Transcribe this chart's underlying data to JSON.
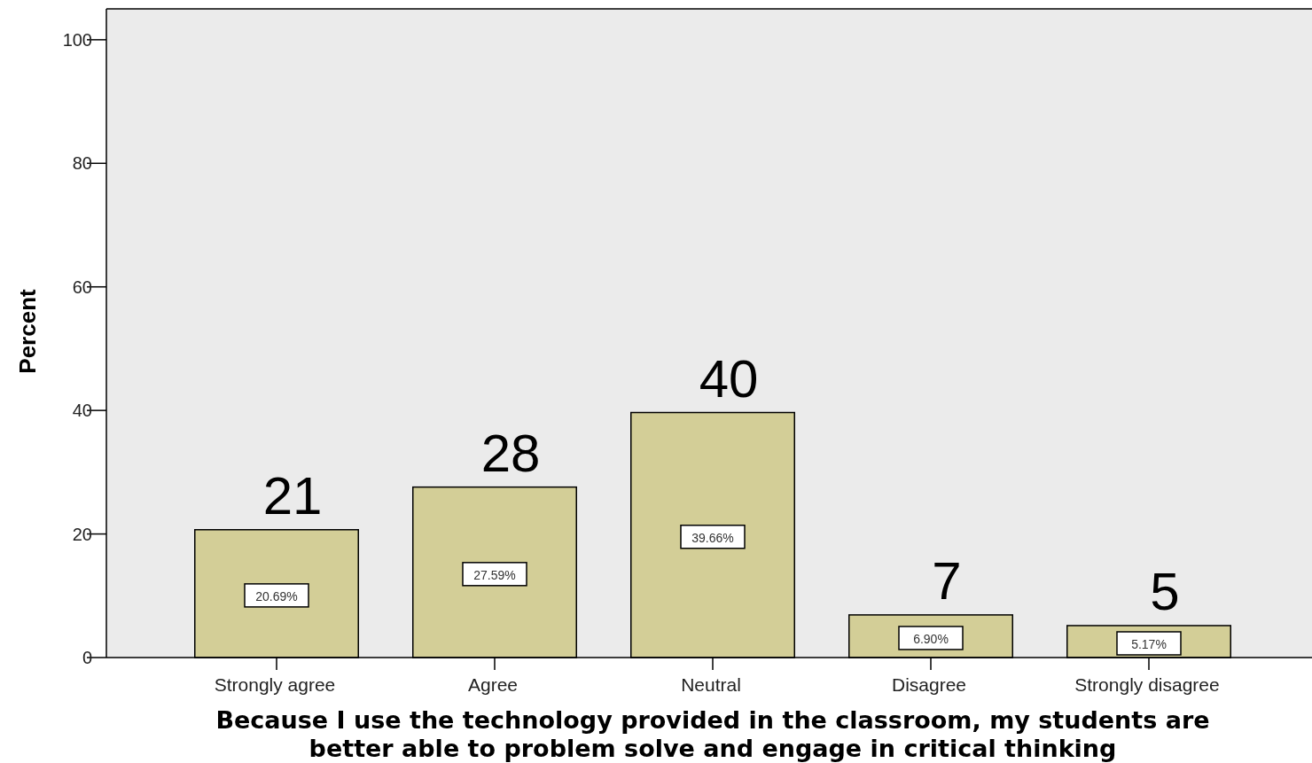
{
  "chart_data": {
    "type": "bar",
    "xlabel": "Because I use the technology provided in the classroom, my students are better able to problem solve and engage in critical thinking",
    "ylabel": "Percent",
    "categories": [
      "Strongly agree",
      "Agree",
      "Neutral",
      "Disagree",
      "Strongly disagree"
    ],
    "values": [
      20.69,
      27.59,
      39.66,
      6.9,
      5.17
    ],
    "value_labels": [
      "20.69%",
      "27.59%",
      "39.66%",
      "6.90%",
      "5.17%"
    ],
    "color": "#d3ce97",
    "ylim": [
      0,
      105
    ],
    "yticks": [
      0,
      20,
      40,
      60,
      80,
      100
    ],
    "grid": false,
    "annotations": [
      {
        "text": "21",
        "x": "Strongly agree",
        "y": 20.69
      },
      {
        "text": "28",
        "x": "Agree",
        "y": 27.59
      },
      {
        "text": "40",
        "x": "Neutral",
        "y": 39.66
      },
      {
        "text": "7",
        "x": "Disagree",
        "y": 6.9
      },
      {
        "text": "5",
        "x": "Strongly disagree",
        "y": 5.17
      }
    ]
  }
}
